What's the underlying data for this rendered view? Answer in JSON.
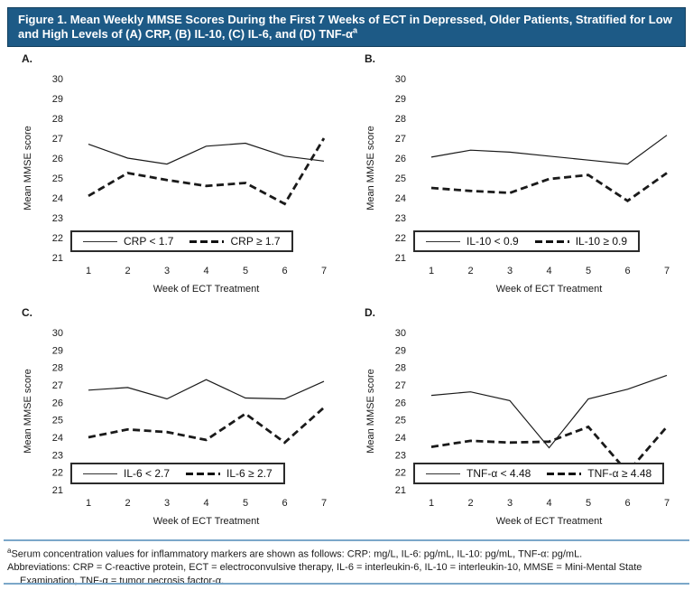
{
  "header": {
    "title": "Figure 1. Mean Weekly MMSE Scores During the First 7 Weeks of ECT in Depressed, Older Patients, Stratified for Low and High Levels of (A) CRP, (B) IL-10, (C) IL-6, and (D) TNF-α",
    "title_superscript": "a",
    "background_color": "#1d5a86",
    "text_color": "#ffffff"
  },
  "colors": {
    "line_color": "#1a1a1a",
    "divider_color": "#7ba7c9"
  },
  "chart_data": [
    {
      "type": "line",
      "panel_label": "A.",
      "x": [
        1,
        2,
        3,
        4,
        5,
        6,
        7
      ],
      "x_axis_label": "Week of ECT Treatment",
      "y_axis_label": "Mean MMSE score",
      "ylim": [
        21,
        30
      ],
      "y_ticks": [
        30,
        29,
        28,
        27,
        26,
        25,
        24,
        23,
        22,
        21
      ],
      "grid": false,
      "legend_position": "bottom-inside-box",
      "series": [
        {
          "name": "CRP < 1.7",
          "line_style": "solid",
          "values": [
            26.7,
            26.0,
            25.7,
            26.6,
            26.75,
            26.1,
            25.85
          ]
        },
        {
          "name": "CRP ≥ 1.7",
          "line_style": "dashed",
          "values": [
            24.1,
            25.25,
            24.9,
            24.6,
            24.75,
            23.7,
            27.0
          ]
        }
      ]
    },
    {
      "type": "line",
      "panel_label": "B.",
      "x": [
        1,
        2,
        3,
        4,
        5,
        6,
        7
      ],
      "x_axis_label": "Week of ECT Treatment",
      "y_axis_label": "Mean MMSE score",
      "ylim": [
        21,
        30
      ],
      "y_ticks": [
        30,
        29,
        28,
        27,
        26,
        25,
        24,
        23,
        22,
        21
      ],
      "grid": false,
      "legend_position": "bottom-inside-box",
      "series": [
        {
          "name": "IL-10 < 0.9",
          "line_style": "solid",
          "values": [
            26.05,
            26.4,
            26.3,
            26.1,
            25.9,
            25.7,
            27.15
          ]
        },
        {
          "name": "IL-10 ≥ 0.9",
          "line_style": "dashed",
          "values": [
            24.5,
            24.35,
            24.25,
            24.95,
            25.15,
            23.85,
            25.25
          ]
        }
      ]
    },
    {
      "type": "line",
      "panel_label": "C.",
      "x": [
        1,
        2,
        3,
        4,
        5,
        6,
        7
      ],
      "x_axis_label": "Week of ECT Treatment",
      "y_axis_label": "Mean MMSE score",
      "ylim": [
        21,
        30
      ],
      "y_ticks": [
        30,
        29,
        28,
        27,
        26,
        25,
        24,
        23,
        22,
        21
      ],
      "grid": false,
      "legend_position": "bottom-inside-box",
      "series": [
        {
          "name": "IL-6 < 2.7",
          "line_style": "solid",
          "values": [
            26.7,
            26.85,
            26.2,
            27.3,
            26.25,
            26.2,
            27.2
          ]
        },
        {
          "name": "IL-6 ≥ 2.7",
          "line_style": "dashed",
          "values": [
            24.0,
            24.45,
            24.3,
            23.85,
            25.35,
            23.7,
            25.7
          ]
        }
      ]
    },
    {
      "type": "line",
      "panel_label": "D.",
      "x": [
        1,
        2,
        3,
        4,
        5,
        6,
        7
      ],
      "x_axis_label": "Week of ECT Treatment",
      "y_axis_label": "Mean MMSE score",
      "ylim": [
        21,
        30
      ],
      "y_ticks": [
        30,
        29,
        28,
        27,
        26,
        25,
        24,
        23,
        22,
        21
      ],
      "grid": false,
      "legend_position": "bottom-inside-box",
      "series": [
        {
          "name": "TNF-α < 4.48",
          "line_style": "solid",
          "values": [
            26.4,
            26.6,
            26.1,
            23.4,
            26.2,
            26.75,
            27.55
          ]
        },
        {
          "name": "TNF-α ≥ 4.48",
          "line_style": "dashed",
          "values": [
            23.45,
            23.8,
            23.7,
            23.75,
            24.6,
            22.0,
            24.6
          ]
        }
      ]
    }
  ],
  "footer": {
    "superscript": "a",
    "line1": "Serum concentration values for inflammatory markers are shown as follows: CRP: mg/L, IL-6: pg/mL, IL-10: pg/mL, TNF-α: pg/mL.",
    "line2": "Abbreviations: CRP = C-reactive protein, ECT = electroconvulsive therapy, IL-6 = interleukin-6, IL-10 = interleukin-10, MMSE = Mini-Mental State Examination, TNF-α = tumor necrosis factor-α.",
    "divider_color": "#7ba7c9"
  }
}
